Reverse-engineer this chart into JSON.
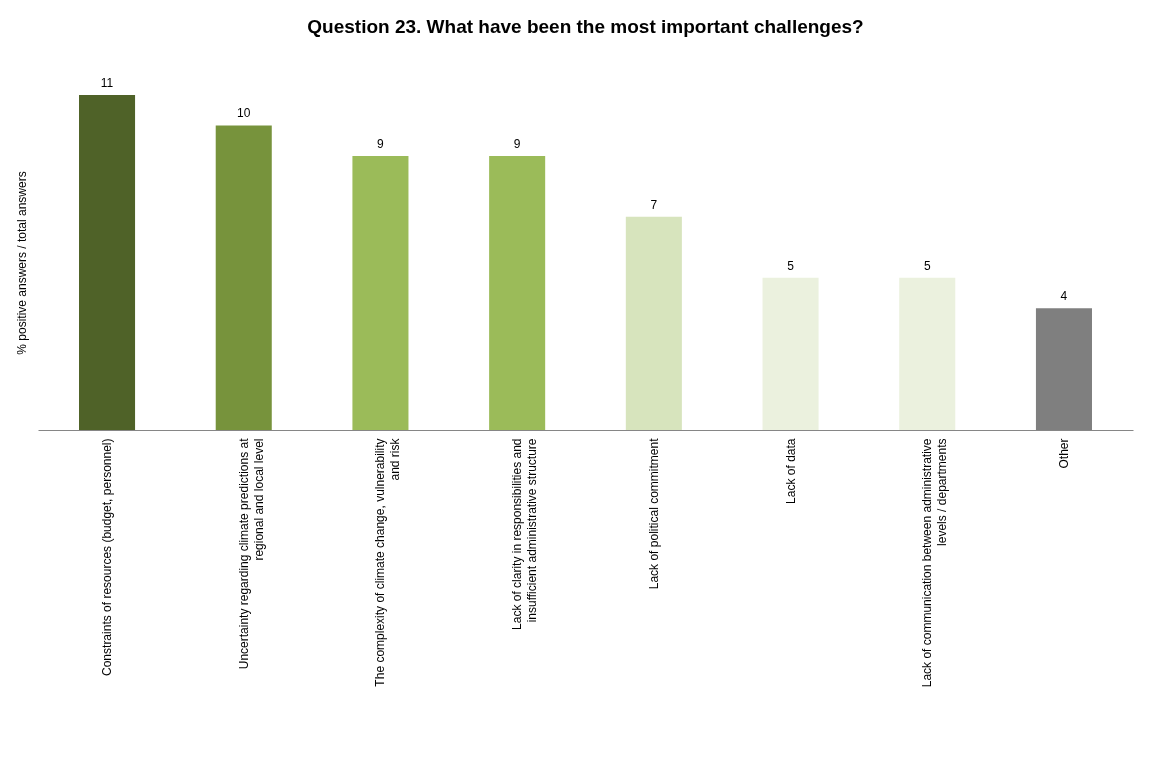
{
  "chart_data": {
    "type": "bar",
    "title": "Question 23. What have been the most important challenges?",
    "ylabel": "% positive answers / total answers",
    "categories": [
      "Constraints of resources (budget, personnel)",
      "Uncertainty regarding climate predictions at regional and local level",
      "The complexity of climate change, vulnerability and risk",
      "Lack of clarity in responsibilities and insufficient administrative structure",
      "Lack of political commitment",
      "Lack of data",
      "Lack of communication between administrative levels / departments",
      "Other"
    ],
    "values": [
      11,
      10,
      9,
      9,
      7,
      5,
      5,
      4
    ],
    "colors": [
      "#4f6228",
      "#77933c",
      "#9bbb59",
      "#9bbb59",
      "#d7e4bd",
      "#ebf1de",
      "#ebf1de",
      "#7f7f7f"
    ],
    "data_labels": true,
    "grid": false,
    "legend": false
  }
}
